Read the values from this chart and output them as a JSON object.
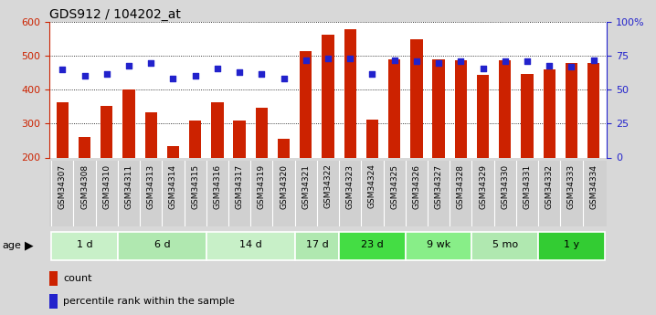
{
  "title": "GDS912 / 104202_at",
  "samples": [
    "GSM34307",
    "GSM34308",
    "GSM34310",
    "GSM34311",
    "GSM34313",
    "GSM34314",
    "GSM34315",
    "GSM34316",
    "GSM34317",
    "GSM34319",
    "GSM34320",
    "GSM34321",
    "GSM34322",
    "GSM34323",
    "GSM34324",
    "GSM34325",
    "GSM34326",
    "GSM34327",
    "GSM34328",
    "GSM34329",
    "GSM34330",
    "GSM34331",
    "GSM34332",
    "GSM34333",
    "GSM34334"
  ],
  "counts": [
    362,
    260,
    352,
    402,
    334,
    235,
    308,
    362,
    310,
    346,
    256,
    515,
    563,
    578,
    312,
    490,
    548,
    490,
    487,
    443,
    488,
    446,
    461,
    479,
    479
  ],
  "percentiles": [
    65,
    60,
    62,
    68,
    70,
    58,
    60,
    66,
    63,
    62,
    58,
    72,
    73,
    73,
    62,
    72,
    71,
    70,
    71,
    66,
    71,
    71,
    68,
    67,
    72
  ],
  "age_groups": [
    {
      "label": "1 d",
      "start": 0,
      "end": 3,
      "color": "#c8f0c8"
    },
    {
      "label": "6 d",
      "start": 3,
      "end": 7,
      "color": "#b0e8b0"
    },
    {
      "label": "14 d",
      "start": 7,
      "end": 11,
      "color": "#c8f0c8"
    },
    {
      "label": "17 d",
      "start": 11,
      "end": 13,
      "color": "#b0e8b0"
    },
    {
      "label": "23 d",
      "start": 13,
      "end": 16,
      "color": "#44dd44"
    },
    {
      "label": "9 wk",
      "start": 16,
      "end": 19,
      "color": "#88ee88"
    },
    {
      "label": "5 mo",
      "start": 19,
      "end": 22,
      "color": "#b0e8b0"
    },
    {
      "label": "1 y",
      "start": 22,
      "end": 25,
      "color": "#33cc33"
    }
  ],
  "bar_color": "#cc2200",
  "dot_color": "#2222cc",
  "ylim_left": [
    200,
    600
  ],
  "ylim_right": [
    0,
    100
  ],
  "yticks_left": [
    200,
    300,
    400,
    500,
    600
  ],
  "yticks_right": [
    0,
    25,
    50,
    75,
    100
  ],
  "ytick_labels_right": [
    "0",
    "25",
    "50",
    "75",
    "100%"
  ],
  "background_color": "#d8d8d8",
  "plot_bg_color": "#ffffff",
  "tick_bg_color": "#d0d0d0",
  "legend_count_color": "#cc2200",
  "legend_pct_color": "#2222cc"
}
